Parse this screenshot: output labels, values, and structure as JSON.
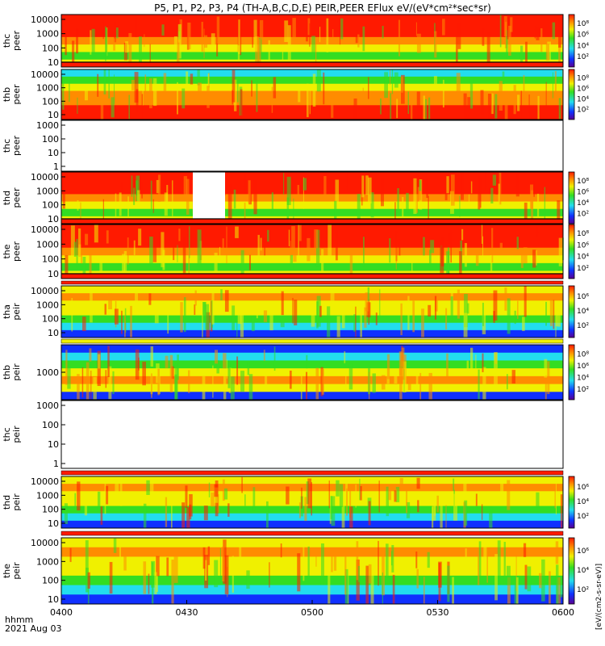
{
  "chart_data": {
    "type": "heatmap",
    "title": "P5, P1, P2, P3, P4 (TH-A,B,C,D,E) PEIR,PEER EFlux eV/(eV*cm²*sec*sr)",
    "x_unit_label": "hhmm",
    "date_label": "2021 Aug 03",
    "x_ticks": [
      "0400",
      "0430",
      "0500",
      "0530",
      "0600"
    ],
    "x_range": [
      "04:00",
      "06:00"
    ],
    "colorbar_unit": "[eV/(cm2-s-sr-eV)]",
    "panels": [
      {
        "probe": "thc",
        "instrument": "peer",
        "y_ticks": [
          "10",
          "100",
          "1000",
          "10000"
        ],
        "y_log": true,
        "has_data": true,
        "colorbar_ticks": [
          "10²",
          "10⁴",
          "10⁶",
          "10⁸"
        ]
      },
      {
        "probe": "thb",
        "instrument": "peer",
        "y_ticks": [
          "10",
          "100",
          "1000",
          "10000"
        ],
        "y_log": true,
        "has_data": true,
        "colorbar_ticks": [
          "10²",
          "10⁴",
          "10⁶",
          "10⁸"
        ]
      },
      {
        "probe": "thc",
        "instrument": "peer",
        "y_ticks": [
          "1",
          "10",
          "100",
          "1000"
        ],
        "y_log": true,
        "has_data": false,
        "colorbar_ticks": []
      },
      {
        "probe": "thd",
        "instrument": "peer",
        "y_ticks": [
          "10",
          "100",
          "1000",
          "10000"
        ],
        "y_log": true,
        "has_data": true,
        "colorbar_ticks": [
          "10²",
          "10⁴",
          "10⁶",
          "10⁸"
        ]
      },
      {
        "probe": "the",
        "instrument": "peer",
        "y_ticks": [
          "10",
          "100",
          "1000",
          "10000"
        ],
        "y_log": true,
        "has_data": true,
        "colorbar_ticks": [
          "10²",
          "10⁴",
          "10⁶",
          "10⁸"
        ]
      },
      {
        "probe": "tha",
        "instrument": "peir",
        "y_ticks": [
          "10",
          "100",
          "1000",
          "10000"
        ],
        "y_log": true,
        "has_data": true,
        "colorbar_ticks": [
          "10²",
          "10⁴",
          "10⁶"
        ]
      },
      {
        "probe": "thb",
        "instrument": "peir",
        "y_ticks": [
          "1000"
        ],
        "y_log": true,
        "has_data": true,
        "colorbar_ticks": [
          "10²",
          "10⁴",
          "10⁶",
          "10⁸"
        ]
      },
      {
        "probe": "thc",
        "instrument": "peir",
        "y_ticks": [
          "1",
          "10",
          "100",
          "1000"
        ],
        "y_log": true,
        "has_data": false,
        "colorbar_ticks": []
      },
      {
        "probe": "thd",
        "instrument": "peir",
        "y_ticks": [
          "10",
          "100",
          "1000",
          "10000"
        ],
        "y_log": true,
        "has_data": true,
        "colorbar_ticks": [
          "10²",
          "10⁴",
          "10⁶"
        ]
      },
      {
        "probe": "the",
        "instrument": "peir",
        "y_ticks": [
          "10",
          "100",
          "1000",
          "10000"
        ],
        "y_log": true,
        "has_data": true,
        "colorbar_ticks": [
          "10²",
          "10⁴",
          "10⁶"
        ]
      }
    ]
  },
  "colors": {
    "red": "#ff1a00",
    "orange": "#ff8c00",
    "yellow": "#f0f000",
    "green": "#33dd22",
    "cyan": "#22ddee",
    "blue": "#1030ff",
    "dark": "#4b0080"
  }
}
